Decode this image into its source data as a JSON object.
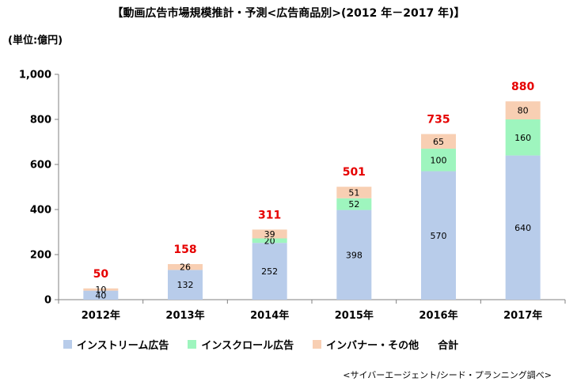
{
  "title": "【動画広告市場規模推計・予測<広告商品別>(2012 年－2017 年)】",
  "unit": "(単位:億円)",
  "source": "<サイバーエージェント/シード・プランニング調べ>",
  "chart_data": {
    "type": "bar",
    "stacked": true,
    "categories": [
      "2012年",
      "2013年",
      "2014年",
      "2015年",
      "2016年",
      "2017年"
    ],
    "series": [
      {
        "name": "インストリーム広告",
        "values": [
          40,
          132,
          252,
          398,
          570,
          640
        ],
        "color": "#B8CCEA"
      },
      {
        "name": "インスクロール広告",
        "values": [
          0,
          0,
          20,
          52,
          100,
          160
        ],
        "color": "#9EF5BE"
      },
      {
        "name": "インバナー・その他",
        "values": [
          10,
          26,
          39,
          51,
          65,
          80
        ],
        "color": "#F8CFB3"
      }
    ],
    "totals_label": "合計",
    "totals": [
      50,
      158,
      311,
      501,
      735,
      880
    ],
    "totals_color": "#E60000",
    "ylim": [
      0,
      1000
    ],
    "yticks": [
      0,
      200,
      400,
      600,
      800,
      "1,000"
    ],
    "ytick_values": [
      0,
      200,
      400,
      600,
      800,
      1000
    ],
    "grid": false,
    "legend": "bottom"
  }
}
